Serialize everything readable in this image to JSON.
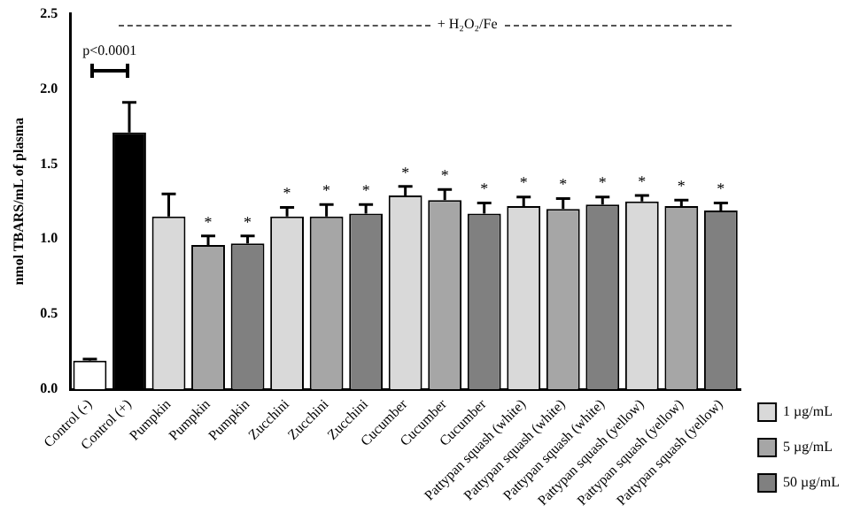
{
  "chart_data": {
    "type": "bar",
    "categories": [
      "Control (-)",
      "Control (+)",
      "Pumpkin",
      "Pumpkin",
      "Pumpkin",
      "Zucchini",
      "Zucchini",
      "Zucchini",
      "Cucumber",
      "Cucumber",
      "Cucumber",
      "Pattypan squash (white)",
      "Pattypan squash (white)",
      "Pattypan squash (white)",
      "Pattypan squash (yellow)",
      "Pattypan squash (yellow)",
      "Pattypan squash (yellow)"
    ],
    "series": [
      {
        "colors": [
          "#ffffff",
          "#000000",
          null,
          null,
          null,
          null,
          null,
          null,
          null,
          null,
          null,
          null,
          null,
          null,
          null,
          null,
          null
        ],
        "values": [
          0.19,
          1.71,
          null,
          null,
          null,
          null,
          null,
          null,
          null,
          null,
          null,
          null,
          null,
          null,
          null,
          null,
          null
        ],
        "errors": [
          [
            0.19,
            0.2
          ],
          [
            1.71,
            1.91
          ],
          null,
          null,
          null,
          null,
          null,
          null,
          null,
          null,
          null,
          null,
          null,
          null,
          null,
          null,
          null
        ]
      },
      {
        "name": "1 µg/mL",
        "color": "#d9d9d9",
        "values": [
          null,
          null,
          1.15,
          null,
          null,
          1.15,
          null,
          null,
          1.29,
          null,
          null,
          1.22,
          null,
          null,
          1.25,
          null,
          null
        ],
        "errors": [
          null,
          null,
          [
            1.15,
            1.3
          ],
          null,
          null,
          [
            1.15,
            1.21
          ],
          null,
          null,
          [
            1.29,
            1.35
          ],
          null,
          null,
          [
            1.22,
            1.28
          ],
          null,
          null,
          [
            1.25,
            1.29
          ],
          null,
          null
        ],
        "value_labels": [
          null,
          null,
          null,
          null,
          null,
          "*",
          null,
          null,
          "*",
          null,
          null,
          "*",
          null,
          null,
          "*",
          null,
          null
        ]
      },
      {
        "name": "5 µg/mL",
        "color": "#a6a6a6",
        "values": [
          null,
          null,
          null,
          0.96,
          null,
          null,
          1.15,
          null,
          null,
          1.26,
          null,
          null,
          1.2,
          null,
          null,
          1.22,
          null
        ],
        "errors": [
          null,
          null,
          null,
          [
            0.96,
            1.02
          ],
          null,
          null,
          [
            1.15,
            1.23
          ],
          null,
          null,
          [
            1.26,
            1.33
          ],
          null,
          null,
          [
            1.2,
            1.27
          ],
          null,
          null,
          [
            1.22,
            1.26
          ],
          null
        ],
        "value_labels": [
          null,
          null,
          null,
          "*",
          null,
          null,
          "*",
          null,
          null,
          "*",
          null,
          null,
          "*",
          null,
          null,
          "*",
          null
        ]
      },
      {
        "name": "50 µg/mL",
        "color": "#808080",
        "values": [
          null,
          null,
          null,
          null,
          0.97,
          null,
          null,
          1.17,
          null,
          null,
          1.17,
          null,
          null,
          1.23,
          null,
          null,
          1.19
        ],
        "errors": [
          null,
          null,
          null,
          null,
          [
            0.97,
            1.02
          ],
          null,
          null,
          [
            1.17,
            1.23
          ],
          null,
          null,
          [
            1.17,
            1.24
          ],
          null,
          null,
          [
            1.23,
            1.28
          ],
          null,
          null,
          [
            1.19,
            1.24
          ]
        ],
        "value_labels": [
          null,
          null,
          null,
          null,
          "*",
          null,
          null,
          "*",
          null,
          null,
          "*",
          null,
          null,
          "*",
          null,
          null,
          "*"
        ]
      }
    ],
    "ylabel": "nmol TBARS/mL of plasma",
    "ylim": [
      0,
      2.5
    ],
    "yticks": [
      {
        "value": 0,
        "label": "0.0"
      },
      {
        "value": 0.5,
        "label": "0.5"
      },
      {
        "value": 1,
        "label": "1.0"
      },
      {
        "value": 1.5,
        "label": "1.5"
      },
      {
        "value": 2,
        "label": "2.0"
      },
      {
        "value": 2.5,
        "label": "2.5"
      }
    ],
    "annotations": [
      "p<0.0001",
      "+ H₂O₂/Fe"
    ],
    "grid": false,
    "legend": "right"
  }
}
